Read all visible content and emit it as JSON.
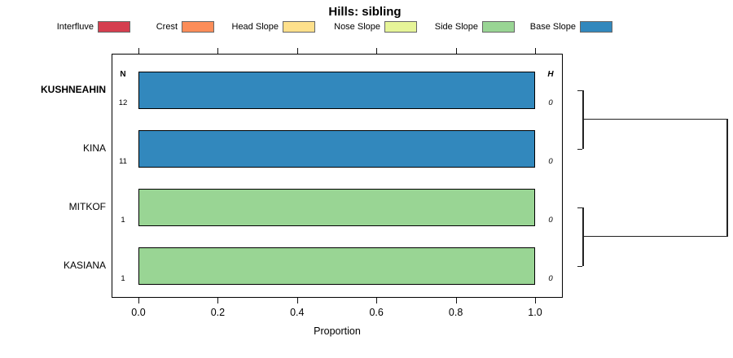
{
  "title": "Hills: sibling",
  "legend": {
    "items": [
      {
        "label": "Interfluve",
        "color": "#d53e4f"
      },
      {
        "label": "Crest",
        "color": "#fc8d59"
      },
      {
        "label": "Head Slope",
        "color": "#fee08b"
      },
      {
        "label": "Nose Slope",
        "color": "#e6f598"
      },
      {
        "label": "Side Slope",
        "color": "#99d594"
      },
      {
        "label": "Base Slope",
        "color": "#3288bd"
      }
    ]
  },
  "chart_data": {
    "type": "bar",
    "orientation": "horizontal",
    "title": "Hills: sibling",
    "xlabel": "Proportion",
    "xlim": [
      0.0,
      1.0
    ],
    "xticks": [
      0.0,
      0.2,
      0.4,
      0.6,
      0.8,
      1.0
    ],
    "grid": false,
    "columns": {
      "left": "N",
      "right": "H"
    },
    "rows": [
      {
        "label": "KUSHNEAHIN",
        "bold": true,
        "n": "12",
        "h": "0",
        "category": "Base Slope",
        "proportion": 1.0
      },
      {
        "label": "KINA",
        "bold": false,
        "n": "11",
        "h": "0",
        "category": "Base Slope",
        "proportion": 1.0
      },
      {
        "label": "MITKOF",
        "bold": false,
        "n": "1",
        "h": "0",
        "category": "Side Slope",
        "proportion": 1.0
      },
      {
        "label": "KASIANA",
        "bold": false,
        "n": "1",
        "h": "0",
        "category": "Side Slope",
        "proportion": 1.0
      }
    ],
    "dendrogram": {
      "pairs": [
        [
          "KUSHNEAHIN",
          "KINA"
        ],
        [
          "MITKOF",
          "KASIANA"
        ]
      ],
      "join": "root",
      "heights": [
        0,
        0,
        0,
        0
      ]
    }
  }
}
